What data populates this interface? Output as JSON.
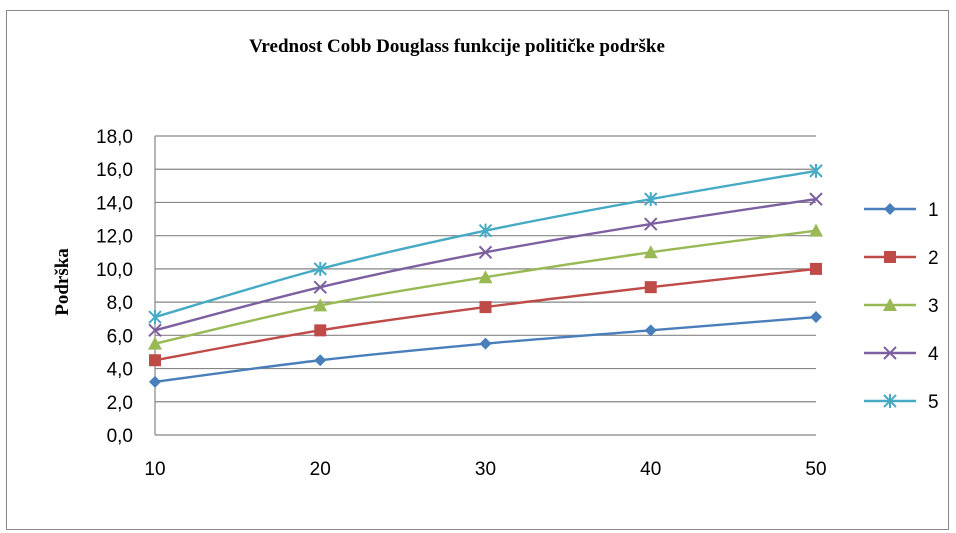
{
  "chart_data": {
    "type": "line",
    "title": "Vrednost Cobb Douglass funkcije političke podrške",
    "xlabel": "",
    "ylabel": "Podrška",
    "x": [
      10,
      20,
      30,
      40,
      50
    ],
    "ylim": [
      0,
      18
    ],
    "y_ticks": [
      "0,0",
      "2,0",
      "4,0",
      "6,0",
      "8,0",
      "10,0",
      "12,0",
      "14,0",
      "16,0",
      "18,0"
    ],
    "x_ticks": [
      "10",
      "20",
      "30",
      "40",
      "50"
    ],
    "grid": "horizontal",
    "legend_position": "right",
    "series": [
      {
        "name": "1",
        "color": "#4A7EBB",
        "marker": "diamond",
        "values": [
          3.2,
          4.5,
          5.5,
          6.3,
          7.1
        ]
      },
      {
        "name": "2",
        "color": "#BE4B48",
        "marker": "square",
        "values": [
          4.5,
          6.3,
          7.7,
          8.9,
          10.0
        ]
      },
      {
        "name": "3",
        "color": "#98B954",
        "marker": "triangle",
        "values": [
          5.5,
          7.8,
          9.5,
          11.0,
          12.3
        ]
      },
      {
        "name": "4",
        "color": "#7D60A0",
        "marker": "x",
        "values": [
          6.3,
          8.9,
          11.0,
          12.7,
          14.2
        ]
      },
      {
        "name": "5",
        "color": "#46AAC5",
        "marker": "star",
        "values": [
          7.1,
          10.0,
          12.3,
          14.2,
          15.9
        ]
      }
    ]
  }
}
